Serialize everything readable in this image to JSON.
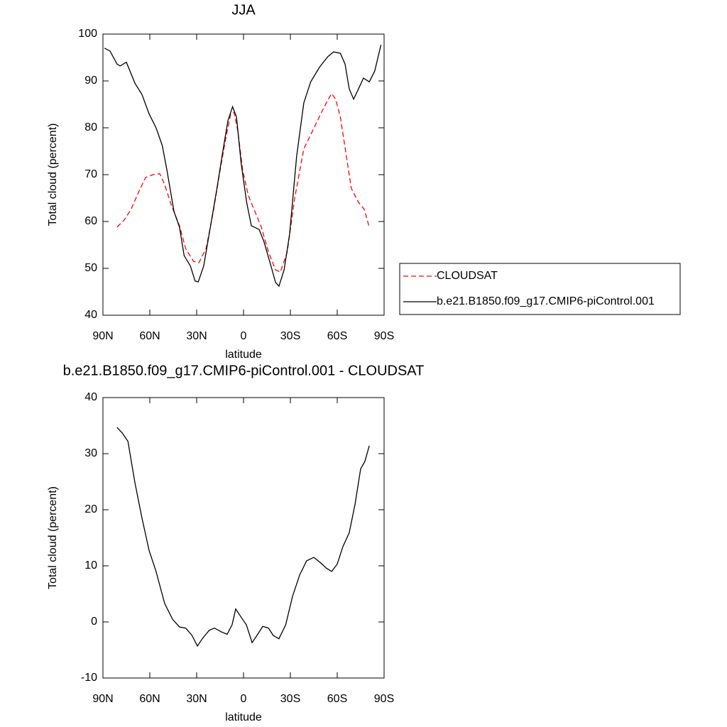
{
  "chart_data": [
    {
      "type": "line",
      "title": "JJA",
      "xlabel": "latitude",
      "ylabel": "Total cloud (percent)",
      "xlim": [
        90,
        -90
      ],
      "xticks": [
        {
          "value": 90,
          "label": "90N"
        },
        {
          "value": 60,
          "label": "60N"
        },
        {
          "value": 30,
          "label": "30N"
        },
        0,
        {
          "value": -30,
          "label": "30S"
        },
        {
          "value": -60,
          "label": "60S"
        },
        {
          "value": -90,
          "label": "90S"
        }
      ],
      "ylim": [
        40,
        100
      ],
      "yticks": [
        40,
        50,
        60,
        70,
        80,
        90,
        100
      ],
      "legend": "right",
      "series": [
        {
          "name": "CLOUDSAT",
          "color": "#ff0000",
          "dash": true,
          "x": [
            81,
            76.4,
            72,
            67,
            62.7,
            58,
            53.6,
            50.5,
            46,
            41,
            37,
            32,
            28.6,
            24,
            19.5,
            15,
            11.4,
            8.2,
            6,
            3.6,
            0.5,
            -3,
            -7.7,
            -11.4,
            -16,
            -20.5,
            -23.6,
            -28,
            -32.7,
            -38.6,
            -44,
            -49.5,
            -53,
            -56.4,
            -59,
            -62,
            -65.5,
            -69,
            -73.6,
            -77.3,
            -80.5
          ],
          "values": [
            58.8,
            60.3,
            62.6,
            66.4,
            69.4,
            70,
            70.2,
            67.9,
            63.3,
            59.1,
            54.2,
            51.5,
            51.2,
            54.2,
            61.8,
            70.9,
            77.7,
            83,
            83.3,
            79.2,
            70.9,
            65.6,
            61.8,
            58.8,
            53.5,
            49.7,
            49.2,
            53.5,
            64.8,
            75.5,
            79.2,
            83,
            85.3,
            87.3,
            86.1,
            82.3,
            74.7,
            67.1,
            64.1,
            62.6,
            58.8
          ]
        },
        {
          "name": "b.e21.B1850.f09_g17.CMIP6-piControl.001",
          "color": "#000000",
          "dash": false,
          "x": [
            89,
            85.5,
            81,
            79,
            75,
            69.5,
            65,
            60.5,
            56,
            52,
            49,
            44.5,
            41,
            38,
            34,
            31,
            29,
            25.5,
            22,
            17,
            13,
            10,
            7,
            4.5,
            1.5,
            -2,
            -5,
            -10,
            -13,
            -17,
            -20.5,
            -22.7,
            -26,
            -29.5,
            -34,
            -38.6,
            -43,
            -48.6,
            -54,
            -57.7,
            -62,
            -65,
            -67.7,
            -70.5,
            -73.6,
            -76.8,
            -80.5,
            -84,
            -88
          ],
          "values": [
            97,
            96.4,
            93.6,
            93.2,
            94,
            89.5,
            87.1,
            83,
            80,
            76.2,
            70.9,
            62.1,
            58.8,
            52.7,
            50.5,
            47.3,
            47.1,
            50.5,
            57.3,
            67.1,
            75.5,
            81.5,
            84.5,
            82.3,
            72.4,
            64.1,
            59.1,
            58.3,
            55.8,
            51.2,
            47,
            46.2,
            49.7,
            57.3,
            73.9,
            85.3,
            89.8,
            92.9,
            95.2,
            96.2,
            95.9,
            93.6,
            88.3,
            86.1,
            88.3,
            90.6,
            89.8,
            92.1,
            97.7
          ]
        }
      ]
    },
    {
      "type": "line",
      "title": "b.e21.B1850.f09_g17.CMIP6-piControl.001 - CLOUDSAT",
      "xlabel": "latitude",
      "ylabel": "Total cloud (percent)",
      "xlim": [
        90,
        -90
      ],
      "xticks": [
        {
          "value": 90,
          "label": "90N"
        },
        {
          "value": 60,
          "label": "60N"
        },
        {
          "value": 30,
          "label": "30N"
        },
        0,
        {
          "value": -30,
          "label": "30S"
        },
        {
          "value": -60,
          "label": "60S"
        },
        {
          "value": -90,
          "label": "90S"
        }
      ],
      "ylim": [
        -10,
        40
      ],
      "yticks": [
        -10,
        0,
        10,
        20,
        30,
        40
      ],
      "series": [
        {
          "color": "#000000",
          "dash": false,
          "x": [
            81,
            77.7,
            74,
            69.5,
            65,
            60.5,
            56,
            50.5,
            45.5,
            41,
            37,
            33,
            29.5,
            26.4,
            22,
            18.6,
            14,
            10.5,
            7.3,
            5,
            1.4,
            -1.8,
            -5.5,
            -8.6,
            -12.3,
            -16,
            -19,
            -22.7,
            -27,
            -31.4,
            -36,
            -40.4,
            -45,
            -49.5,
            -53,
            -56.4,
            -60,
            -63.6,
            -67.7,
            -71.4,
            -75,
            -77.7,
            -80.5
          ],
          "values": [
            34.7,
            33.7,
            32.2,
            24.8,
            18.5,
            12.8,
            9,
            3.3,
            0.5,
            -0.9,
            -1.1,
            -2.4,
            -4.3,
            -3,
            -1.5,
            -1.1,
            -1.8,
            -2.2,
            -0.5,
            2.3,
            0.8,
            -0.5,
            -3.7,
            -2.4,
            -0.8,
            -1.1,
            -2.4,
            -3,
            -0.5,
            4.6,
            8.4,
            10.9,
            11.5,
            10.5,
            9.6,
            9,
            10.3,
            13.4,
            15.9,
            21,
            27.3,
            28.6,
            31.4
          ]
        }
      ]
    }
  ]
}
